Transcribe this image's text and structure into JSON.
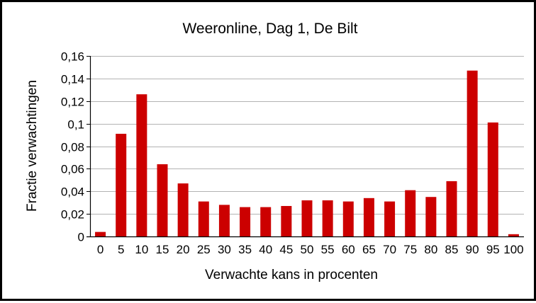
{
  "chart_data": {
    "type": "bar",
    "title": "Weeronline, Dag 1, De Bilt",
    "xlabel": "Verwachte kans in procenten",
    "ylabel": "Fractie verwachtingen",
    "categories": [
      "0",
      "5",
      "10",
      "15",
      "20",
      "25",
      "30",
      "35",
      "40",
      "45",
      "50",
      "55",
      "60",
      "65",
      "70",
      "75",
      "80",
      "85",
      "90",
      "95",
      "100"
    ],
    "values": [
      0.004,
      0.091,
      0.126,
      0.064,
      0.047,
      0.031,
      0.028,
      0.026,
      0.026,
      0.027,
      0.032,
      0.032,
      0.031,
      0.034,
      0.031,
      0.041,
      0.035,
      0.049,
      0.147,
      0.101,
      0.002
    ],
    "ylim": [
      0,
      0.16
    ],
    "yticks": [
      0,
      0.02,
      0.04,
      0.06,
      0.08,
      0.1,
      0.12,
      0.14,
      0.16
    ],
    "ytick_labels": [
      "0",
      "0,02",
      "0,04",
      "0,06",
      "0,08",
      "0,1",
      "0,12",
      "0,14",
      "0,16"
    ],
    "grid": true,
    "bar_color": "#cc0000",
    "grid_color": "#b3b3b3"
  }
}
